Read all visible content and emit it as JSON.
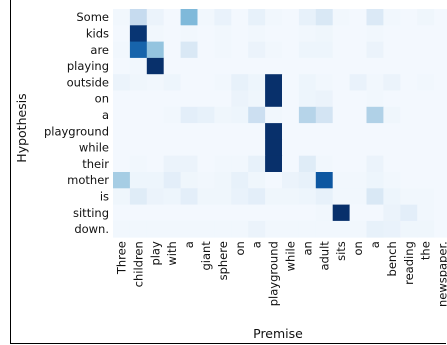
{
  "chart_data": {
    "type": "heatmap",
    "title": "",
    "xlabel": "Premise",
    "ylabel": "Hypothesis",
    "x_categories": [
      "Three",
      "children",
      "play",
      "with",
      "a",
      "giant",
      "sphere",
      "on",
      "a",
      "playground",
      "while",
      "an",
      "adult",
      "sits",
      "on",
      "a",
      "bench",
      "reading",
      "the",
      "newspaper."
    ],
    "y_categories": [
      "Some",
      "kids",
      "are",
      "playing",
      "outside",
      "on",
      "a",
      "playground",
      "while",
      "their",
      "mother",
      "is",
      "sitting",
      "down."
    ],
    "colormap": "Blues",
    "value_range": [
      0,
      1
    ],
    "values": [
      [
        0.03,
        0.25,
        0.06,
        0.02,
        0.45,
        0.03,
        0.07,
        0.02,
        0.08,
        0.03,
        0.02,
        0.08,
        0.15,
        0.03,
        0.02,
        0.14,
        0.03,
        0.02,
        0.04,
        0.02
      ],
      [
        0.02,
        0.98,
        0.03,
        0.02,
        0.03,
        0.02,
        0.03,
        0.02,
        0.03,
        0.02,
        0.02,
        0.03,
        0.04,
        0.02,
        0.02,
        0.03,
        0.02,
        0.02,
        0.02,
        0.02
      ],
      [
        0.03,
        0.8,
        0.4,
        0.02,
        0.15,
        0.02,
        0.03,
        0.02,
        0.06,
        0.03,
        0.02,
        0.05,
        0.05,
        0.02,
        0.02,
        0.06,
        0.02,
        0.02,
        0.02,
        0.02
      ],
      [
        0.02,
        0.03,
        1.0,
        0.02,
        0.02,
        0.02,
        0.02,
        0.02,
        0.02,
        0.02,
        0.02,
        0.02,
        0.02,
        0.02,
        0.02,
        0.02,
        0.02,
        0.02,
        0.02,
        0.02
      ],
      [
        0.06,
        0.04,
        0.03,
        0.05,
        0.02,
        0.02,
        0.03,
        0.08,
        0.05,
        1.0,
        0.02,
        0.05,
        0.03,
        0.02,
        0.07,
        0.03,
        0.06,
        0.02,
        0.03,
        0.02
      ],
      [
        0.02,
        0.02,
        0.02,
        0.02,
        0.02,
        0.02,
        0.02,
        0.06,
        0.04,
        1.0,
        0.02,
        0.05,
        0.06,
        0.02,
        0.02,
        0.03,
        0.02,
        0.02,
        0.02,
        0.02
      ],
      [
        0.02,
        0.02,
        0.02,
        0.03,
        0.1,
        0.08,
        0.04,
        0.05,
        0.22,
        0.03,
        0.02,
        0.3,
        0.18,
        0.02,
        0.02,
        0.32,
        0.04,
        0.02,
        0.02,
        0.02
      ],
      [
        0.02,
        0.02,
        0.02,
        0.02,
        0.02,
        0.02,
        0.02,
        0.02,
        0.02,
        1.0,
        0.02,
        0.02,
        0.02,
        0.02,
        0.02,
        0.02,
        0.02,
        0.02,
        0.02,
        0.02
      ],
      [
        0.02,
        0.02,
        0.02,
        0.02,
        0.02,
        0.02,
        0.02,
        0.02,
        0.02,
        1.0,
        0.02,
        0.02,
        0.02,
        0.02,
        0.02,
        0.02,
        0.02,
        0.02,
        0.02,
        0.02
      ],
      [
        0.02,
        0.03,
        0.02,
        0.06,
        0.06,
        0.02,
        0.03,
        0.03,
        0.08,
        1.0,
        0.02,
        0.12,
        0.03,
        0.02,
        0.02,
        0.06,
        0.02,
        0.02,
        0.02,
        0.02
      ],
      [
        0.35,
        0.05,
        0.05,
        0.1,
        0.04,
        0.03,
        0.04,
        0.08,
        0.04,
        0.02,
        0.06,
        0.08,
        0.85,
        0.03,
        0.03,
        0.05,
        0.03,
        0.02,
        0.02,
        0.02
      ],
      [
        0.04,
        0.12,
        0.06,
        0.05,
        0.1,
        0.04,
        0.04,
        0.07,
        0.1,
        0.04,
        0.04,
        0.05,
        0.08,
        0.03,
        0.03,
        0.15,
        0.05,
        0.03,
        0.03,
        0.02
      ],
      [
        0.02,
        0.02,
        0.02,
        0.02,
        0.02,
        0.02,
        0.02,
        0.02,
        0.02,
        0.02,
        0.02,
        0.02,
        0.03,
        1.0,
        0.02,
        0.02,
        0.06,
        0.1,
        0.03,
        0.02
      ],
      [
        0.03,
        0.03,
        0.03,
        0.03,
        0.03,
        0.03,
        0.03,
        0.03,
        0.06,
        0.03,
        0.03,
        0.03,
        0.03,
        0.03,
        0.03,
        0.08,
        0.07,
        0.04,
        0.04,
        0.02
      ]
    ]
  }
}
